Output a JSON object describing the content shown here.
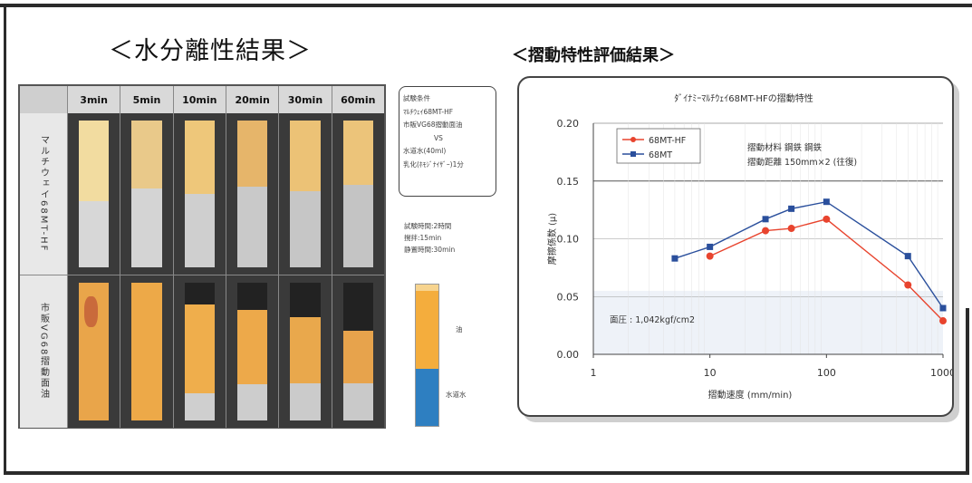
{
  "titles": {
    "left": "＜水分離性結果＞",
    "right": "＜摺動特性評価結果＞"
  },
  "table": {
    "times": [
      "3min",
      "5min",
      "10min",
      "20min",
      "30min",
      "60min"
    ],
    "row1_label": "マルチウェイ68MT-HF",
    "row2_label": "市販VG68摺動面油"
  },
  "notes": {
    "line1": "試験条件",
    "line2": "ﾏﾙﾁｳｪｲ68MT-HF",
    "line3": "市販VG68摺動面油",
    "line4": "VS",
    "line5": "水道水(40ml)",
    "line6": "乳化(ﾎﾓｼﾞﾅｲｻﾞｰ)1分",
    "cond1": "試験時間:2時間",
    "cond2": "撹拌:15min",
    "cond3": "静置時間:30min",
    "oil_label": "油",
    "water_label": "水道水"
  },
  "colors": {
    "series_red": "#e8442e",
    "series_blue": "#2a4f9c",
    "oil": "#f4ad3d",
    "water": "#2e7fc1"
  },
  "chart_data": {
    "type": "line",
    "title": "ﾀﾞｲﾅﾐｰﾏﾙﾁｳｪｲ68MT-HFの摺動特性",
    "xlabel": "摺動速度 (mm/min)",
    "ylabel": "摩擦係数 (μ)",
    "x_scale": "log",
    "xlim": [
      1,
      1000
    ],
    "ylim": [
      0.0,
      0.2
    ],
    "x_ticks": [
      "1",
      "10",
      "100",
      "1000"
    ],
    "y_ticks": [
      "0.00",
      "0.05",
      "0.10",
      "0.15",
      "0.20"
    ],
    "annotation_conditions": "摺動材料 鋼鉄 鋼鉄\n摺動距離 150mm×2 (往復)",
    "annotation_load": "面圧 : 1,042kgf/cm2",
    "legend_position": "top-left",
    "series": [
      {
        "name": "68MT-HF",
        "color": "#e8442e",
        "x": [
          10,
          30,
          50,
          100,
          500,
          1000
        ],
        "y": [
          0.085,
          0.107,
          0.109,
          0.117,
          0.06,
          0.029
        ]
      },
      {
        "name": "68MT",
        "color": "#2a4f9c",
        "x": [
          5,
          10,
          30,
          50,
          100,
          500,
          1000
        ],
        "y": [
          0.083,
          0.093,
          0.117,
          0.126,
          0.132,
          0.085,
          0.04
        ]
      }
    ]
  }
}
